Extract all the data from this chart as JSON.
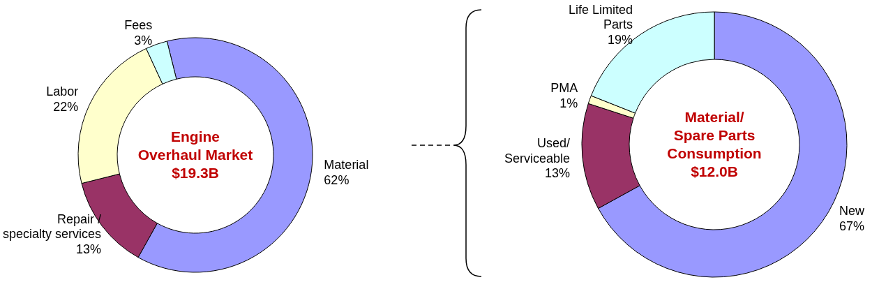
{
  "chart_data": [
    {
      "type": "donut",
      "title": "Engine\nOverhaul Market\n$19.3B",
      "categories": [
        "Material",
        "Repair /\nspecialty services",
        "Labor",
        "Fees"
      ],
      "values": [
        62,
        13,
        22,
        3
      ],
      "colors": [
        "#9999ff",
        "#993366",
        "#ffffcc",
        "#ccffff"
      ],
      "value_labels": [
        "62%",
        "13%",
        "22%",
        "3%"
      ],
      "legend": false
    },
    {
      "type": "donut",
      "title": "Material/\nSpare Parts\nConsumption\n$12.0B",
      "categories": [
        "New",
        "Used/\nServiceable",
        "PMA",
        "Life Limited\nParts"
      ],
      "values": [
        67,
        13,
        1,
        19
      ],
      "colors": [
        "#9999ff",
        "#993366",
        "#ffffcc",
        "#ccffff"
      ],
      "value_labels": [
        "67%",
        "13%",
        "1%",
        "19%"
      ],
      "legend": false
    }
  ]
}
